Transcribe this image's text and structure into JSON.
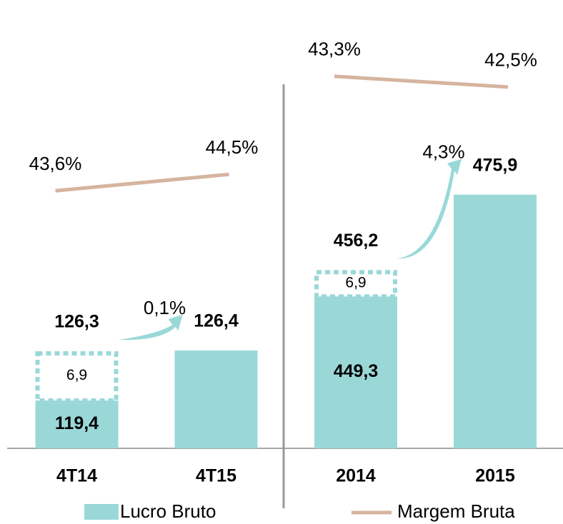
{
  "chart_data": [
    {
      "type": "bar",
      "categories": [
        "4T14",
        "4T15"
      ],
      "ylim": [
        112.7,
        169.5
      ],
      "y2lim": [
        29.5,
        51.7
      ],
      "series": [
        {
          "name": "Lucro Bruto",
          "color": "#9ad8d8",
          "values": [
            119.4,
            126.4
          ],
          "value_labels": [
            "119,4",
            "126,4"
          ]
        },
        {
          "name": "Margem Bruta",
          "color": "#d5b4a0",
          "axis": "y2",
          "values": [
            43.6,
            44.5
          ],
          "value_labels": [
            "43,6%",
            "44,5%"
          ]
        }
      ],
      "adjustment": {
        "values": [
          6.9,
          null
        ],
        "value_labels": [
          "6,9",
          null
        ]
      },
      "totals": {
        "values": [
          126.3,
          null
        ],
        "value_labels": [
          "126,3",
          null
        ]
      },
      "growth": {
        "value": 0.1,
        "label": "0,1%"
      }
    },
    {
      "type": "bar",
      "categories": [
        "2014",
        "2015"
      ],
      "ylim": [
        409.6,
        515.6
      ],
      "y2lim": [
        15.5,
        45.8
      ],
      "series": [
        {
          "color": "#9ad8d8",
          "values": [
            449.3,
            475.9
          ],
          "value_labels": [
            "449,3",
            "475,9"
          ]
        },
        {
          "color": "#d5b4a0",
          "axis": "y2",
          "values": [
            43.3,
            42.5
          ],
          "value_labels": [
            "43,3%",
            "42,5%"
          ]
        }
      ],
      "adjustment": {
        "values": [
          6.9,
          null
        ],
        "value_labels": [
          "6,9",
          null
        ]
      },
      "totals": {
        "values": [
          456.2,
          null
        ],
        "value_labels": [
          "456,2",
          null
        ]
      },
      "growth": {
        "value": 4.3,
        "label": "4,3%"
      }
    }
  ]
}
